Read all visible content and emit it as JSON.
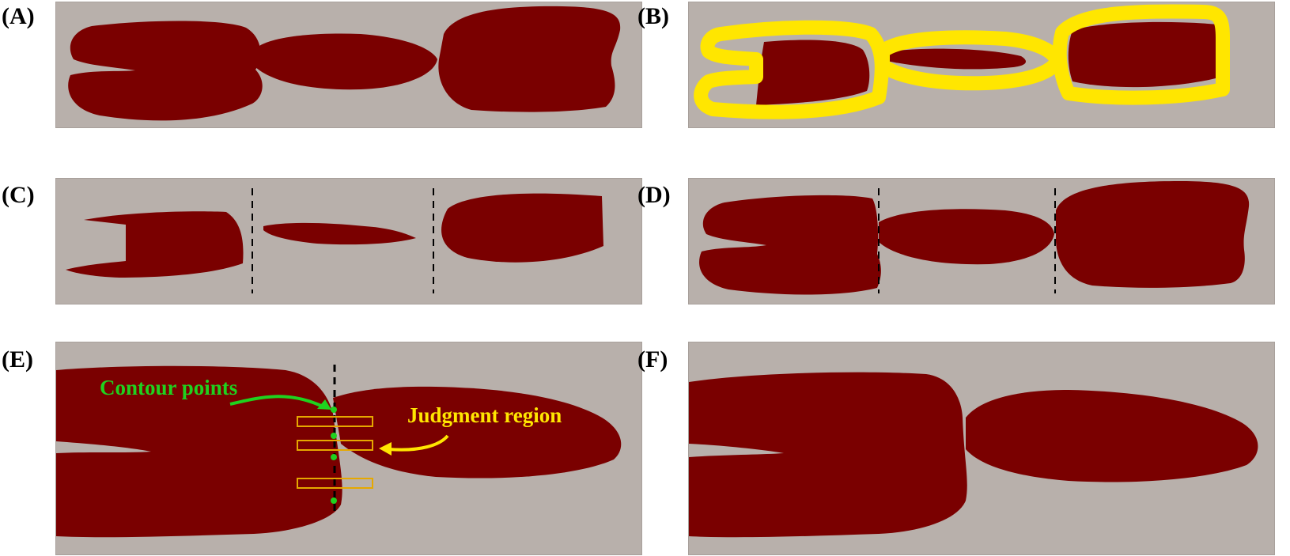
{
  "panels": {
    "a": {
      "label": "(A)"
    },
    "b": {
      "label": "(B)"
    },
    "c": {
      "label": "(C)"
    },
    "d": {
      "label": "(D)"
    },
    "e": {
      "label": "(E)",
      "annotation_contour": "Contour points",
      "annotation_judgment": "Judgment region"
    },
    "f": {
      "label": "(F)"
    }
  },
  "colors": {
    "background": "#b8b0ab",
    "object": "#7a0000",
    "contour_band": "#ffe600",
    "contour_points": "#1fd21f",
    "judgment_region": "#e6a800",
    "cut_line": "#000000"
  }
}
